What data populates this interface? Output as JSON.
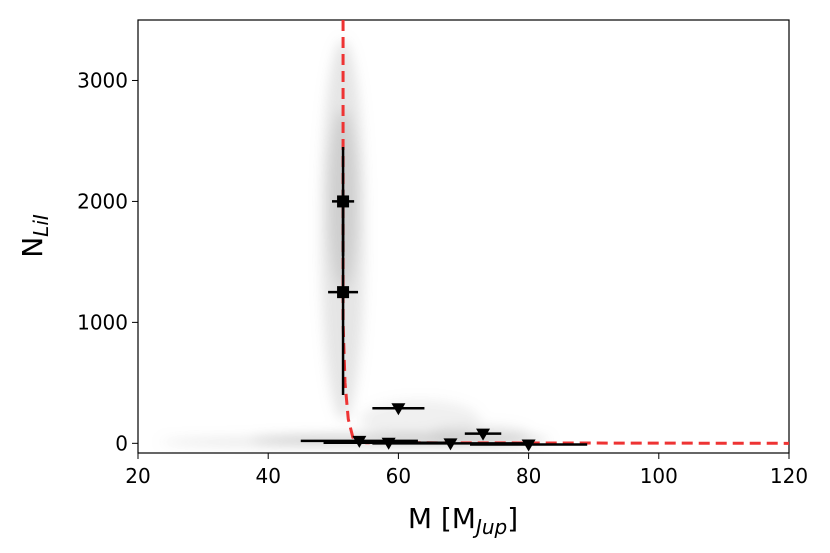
{
  "chart_data": {
    "type": "scatter",
    "xlabel": {
      "main": "M [M",
      "sub": "Jup",
      "end": "]"
    },
    "ylabel": {
      "main": "N",
      "sub": "LiI"
    },
    "xlim": [
      20,
      120
    ],
    "ylim": [
      -80,
      3500
    ],
    "xticks": [
      20,
      40,
      60,
      80,
      100,
      120
    ],
    "yticks": [
      0,
      1000,
      2000,
      3000
    ],
    "detections": {
      "color": "#000000",
      "x": [
        51.5,
        51.5
      ],
      "y": [
        2000,
        1250
      ],
      "xerr": [
        1.7,
        2.3
      ],
      "yerr": [
        450,
        850
      ]
    },
    "upper_limits": {
      "color": "#000000",
      "x": [
        60,
        73,
        54,
        58.5,
        68,
        80
      ],
      "y": [
        290,
        80,
        20,
        5,
        0,
        -10
      ],
      "xerr": [
        4,
        2.8,
        9,
        10,
        12,
        9
      ]
    },
    "model": {
      "color": "#ee3333",
      "x": [
        51.5,
        51.5,
        51.8,
        52.3,
        53,
        55,
        120
      ],
      "y": [
        3500,
        1000,
        500,
        200,
        50,
        5,
        0
      ]
    }
  }
}
